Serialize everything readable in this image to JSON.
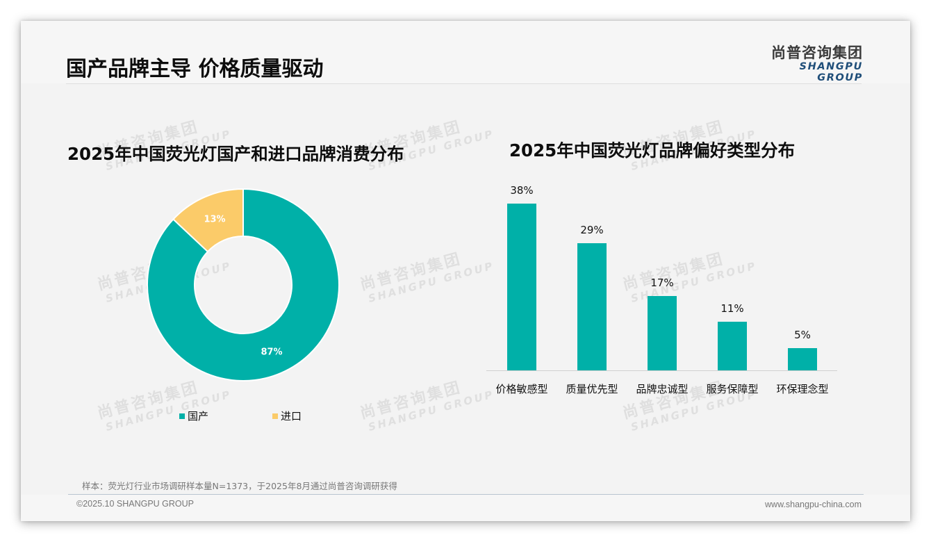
{
  "header": {
    "title": "国产品牌主导 价格质量驱动",
    "logo_cn": "尚普咨询集团",
    "logo_en": "SHANGPU GROUP"
  },
  "watermark": {
    "cn": "尚普咨询集团",
    "en": "SHANGPU GROUP"
  },
  "colors": {
    "domestic": "#00b0a8",
    "imported": "#fbcb69",
    "bar": "#00b0a8",
    "logo_en": "#1f4e79"
  },
  "donut": {
    "title": "2025年中国荧光灯国产和进口品牌消费分布",
    "slices": [
      {
        "label": "国产",
        "value": 87,
        "display": "87%",
        "color": "#00b0a8"
      },
      {
        "label": "进口",
        "value": 13,
        "display": "13%",
        "color": "#fbcb69"
      }
    ],
    "legend": [
      {
        "label": "国产",
        "color": "#00b0a8"
      },
      {
        "label": "进口",
        "color": "#fbcb69"
      }
    ]
  },
  "bars": {
    "title": "2025年中国荧光灯品牌偏好类型分布",
    "items": [
      {
        "label": "价格敏感型",
        "value": 38,
        "display": "38%"
      },
      {
        "label": "质量优先型",
        "value": 29,
        "display": "29%"
      },
      {
        "label": "品牌忠诚型",
        "value": 17,
        "display": "17%"
      },
      {
        "label": "服务保障型",
        "value": 11,
        "display": "11%"
      },
      {
        "label": "环保理念型",
        "value": 5,
        "display": "5%"
      }
    ]
  },
  "footer": {
    "sample_note": "样本：荧光灯行业市场调研样本量N=1373，于2025年8月通过尚普咨询调研获得",
    "copyright": "©2025.10 SHANGPU GROUP",
    "website": "www.shangpu-china.com"
  },
  "chart_data": [
    {
      "type": "pie",
      "title": "2025年中国荧光灯国产和进口品牌消费分布",
      "categories": [
        "国产",
        "进口"
      ],
      "values": [
        87,
        13
      ],
      "unit": "%",
      "donut": true,
      "legend_position": "bottom"
    },
    {
      "type": "bar",
      "title": "2025年中国荧光灯品牌偏好类型分布",
      "categories": [
        "价格敏感型",
        "质量优先型",
        "品牌忠诚型",
        "服务保障型",
        "环保理念型"
      ],
      "values": [
        38,
        29,
        17,
        11,
        5
      ],
      "unit": "%",
      "xlabel": "",
      "ylabel": "",
      "grid": false,
      "data_labels": true
    }
  ]
}
